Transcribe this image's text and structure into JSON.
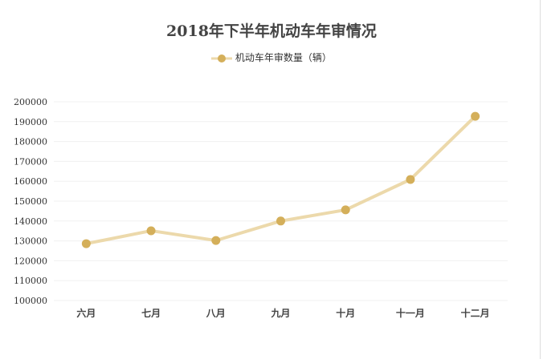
{
  "chart_data": {
    "type": "line",
    "title": "2018年下半年机动车年审情况",
    "categories": [
      "六月",
      "七月",
      "八月",
      "九月",
      "十月",
      "十一月",
      "十二月"
    ],
    "series": [
      {
        "name": "机动车年审数量（辆）",
        "values": [
          128600,
          135100,
          130200,
          140000,
          145600,
          160900,
          192700
        ],
        "color": "#d4af5a",
        "line_color": "#ecd9ab"
      }
    ],
    "ylim": [
      100000,
      200000
    ],
    "yticks": [
      100000,
      110000,
      120000,
      130000,
      140000,
      150000,
      160000,
      170000,
      180000,
      190000,
      200000
    ],
    "grid": true,
    "legend": "top"
  }
}
